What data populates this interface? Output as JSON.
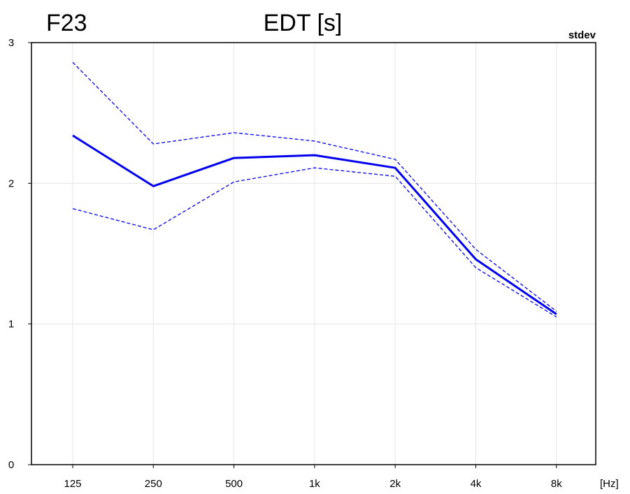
{
  "chart_data": {
    "type": "line",
    "title": "EDT [s]",
    "panel_label": "F23",
    "annotation": "stdev",
    "xlabel": "[Hz]",
    "categories": [
      "125",
      "250",
      "500",
      "1k",
      "2k",
      "4k",
      "8k"
    ],
    "ylim": [
      0,
      3
    ],
    "yticks": [
      "0",
      "1",
      "2",
      "3"
    ],
    "grid": true,
    "series": [
      {
        "role": "mean",
        "values": [
          2.34,
          1.98,
          2.18,
          2.2,
          2.11,
          1.46,
          1.07
        ],
        "color": "#0000ee",
        "style": "solid"
      },
      {
        "role": "mean+stdev",
        "values": [
          2.86,
          2.28,
          2.36,
          2.3,
          2.17,
          1.53,
          1.09
        ],
        "color": "#0000ee",
        "style": "dashed"
      },
      {
        "role": "mean-stdev",
        "values": [
          1.82,
          1.67,
          2.01,
          2.11,
          2.05,
          1.4,
          1.05
        ],
        "color": "#0000ee",
        "style": "dashed"
      }
    ]
  }
}
